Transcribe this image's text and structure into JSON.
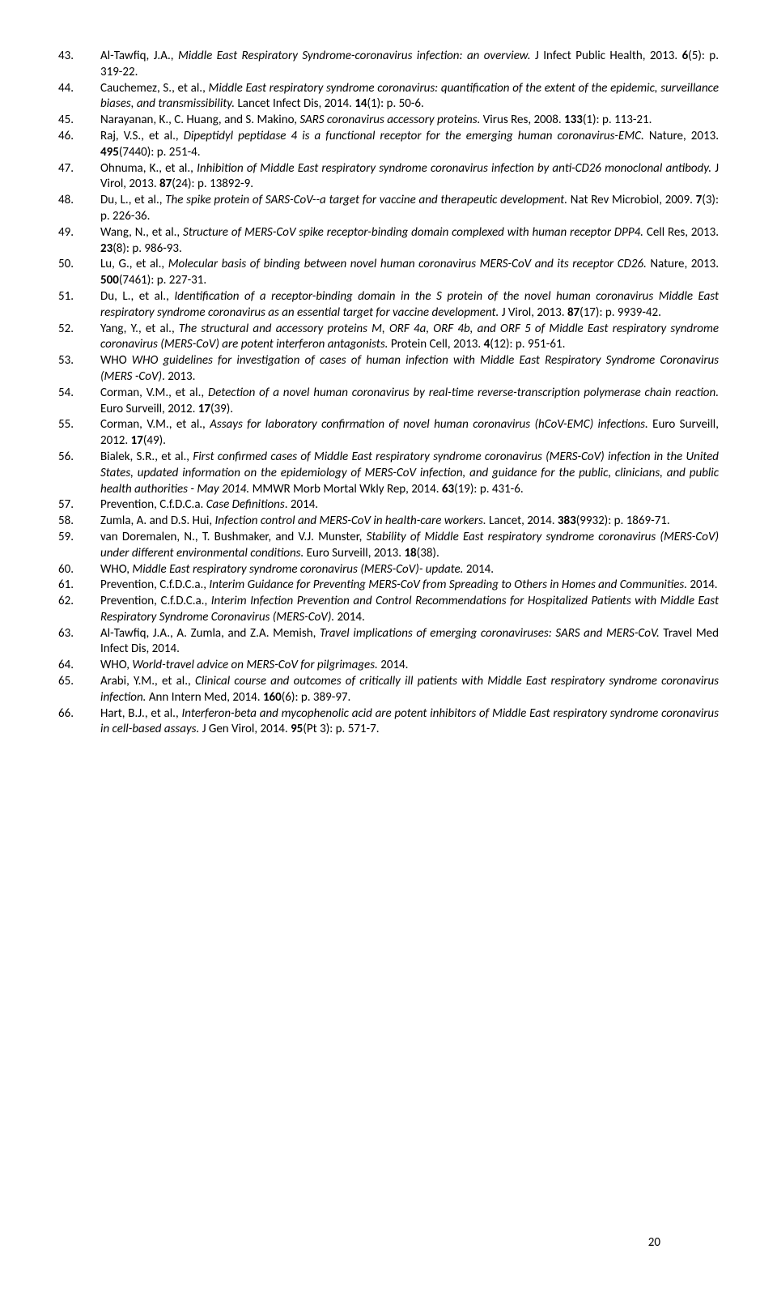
{
  "page_number": "20",
  "references": [
    {
      "n": "43.",
      "html": "Al-Tawfiq, J.A., <span class='italic'>Middle East Respiratory Syndrome-coronavirus infection: an overview.</span> J Infect Public Health, 2013. <span class='bold'>6</span>(5): p. 319-22."
    },
    {
      "n": "44.",
      "html": "Cauchemez, S., et al., <span class='italic'>Middle East respiratory syndrome coronavirus: quantification of the extent of the epidemic, surveillance biases, and transmissibility.</span> Lancet Infect Dis, 2014. <span class='bold'>14</span>(1): p. 50-6."
    },
    {
      "n": "45.",
      "html": "Narayanan, K., C. Huang, and S. Makino, <span class='italic'>SARS coronavirus accessory proteins.</span> Virus Res, 2008. <span class='bold'>133</span>(1): p. 113-21."
    },
    {
      "n": "46.",
      "html": "Raj, V.S., et al., <span class='italic'>Dipeptidyl peptidase 4 is a functional receptor for the emerging human coronavirus-EMC.</span> Nature, 2013. <span class='bold'>495</span>(7440): p. 251-4."
    },
    {
      "n": "47.",
      "html": "Ohnuma, K., et al., <span class='italic'>Inhibition of Middle East respiratory syndrome coronavirus infection by anti-CD26 monoclonal antibody.</span> J Virol, 2013. <span class='bold'>87</span>(24): p. 13892-9."
    },
    {
      "n": "48.",
      "html": "Du, L., et al., <span class='italic'>The spike protein of SARS-CoV--a target for vaccine and therapeutic development.</span> Nat Rev Microbiol, 2009. <span class='bold'>7</span>(3): p. 226-36."
    },
    {
      "n": "49.",
      "html": "Wang, N., et al., <span class='italic'>Structure of MERS-CoV spike receptor-binding domain complexed with human receptor DPP4.</span> Cell Res, 2013. <span class='bold'>23</span>(8): p. 986-93."
    },
    {
      "n": "50.",
      "html": "Lu, G., et al., <span class='italic'>Molecular basis of binding between novel human coronavirus MERS-CoV and its receptor CD26.</span> Nature, 2013. <span class='bold'>500</span>(7461): p. 227-31."
    },
    {
      "n": "51.",
      "html": "Du, L., et al., <span class='italic'>Identification of a receptor-binding domain in the S protein of the novel human coronavirus Middle East respiratory syndrome coronavirus as an essential target for vaccine development.</span> J Virol, 2013. <span class='bold'>87</span>(17): p. 9939-42."
    },
    {
      "n": "52.",
      "html": "Yang, Y., et al., <span class='italic'>The structural and accessory proteins M, ORF 4a, ORF 4b, and ORF 5 of Middle East respiratory syndrome coronavirus (MERS-CoV) are potent interferon antagonists.</span> Protein Cell, 2013. <span class='bold'>4</span>(12): p. 951-61."
    },
    {
      "n": "53.",
      "html": "WHO <span class='italic'>WHO guidelines for investigation of cases of human infection with Middle East Respiratory Syndrome Coronavirus (MERS -CoV)</span>. 2013."
    },
    {
      "n": "54.",
      "html": "Corman, V.M., et al., <span class='italic'>Detection of a novel human coronavirus by real-time reverse-transcription polymerase chain reaction.</span> Euro Surveill, 2012. <span class='bold'>17</span>(39)."
    },
    {
      "n": "55.",
      "html": "Corman, V.M., et al., <span class='italic'>Assays for laboratory confirmation of novel human coronavirus (hCoV-EMC) infections.</span> Euro Surveill, 2012. <span class='bold'>17</span>(49)."
    },
    {
      "n": "56.",
      "html": "Bialek, S.R., et al., <span class='italic'>First confirmed cases of Middle East respiratory syndrome coronavirus (MERS-CoV) infection in the United States, updated information on the epidemiology of MERS-CoV infection, and guidance for the public, clinicians, and public health authorities - May 2014.</span> MMWR Morb Mortal Wkly Rep, 2014. <span class='bold'>63</span>(19): p. 431-6."
    },
    {
      "n": "57.",
      "html": "Prevention, C.f.D.C.a. <span class='italic'>Case Definitions</span>. 2014."
    },
    {
      "n": "58.",
      "html": "Zumla, A. and D.S. Hui, <span class='italic'>Infection control and MERS-CoV in health-care workers.</span> Lancet, 2014. <span class='bold'>383</span>(9932): p. 1869-71."
    },
    {
      "n": "59.",
      "html": "van Doremalen, N., T. Bushmaker, and V.J. Munster, <span class='italic'>Stability of Middle East respiratory syndrome coronavirus (MERS-CoV) under different environmental conditions.</span> Euro Surveill, 2013. <span class='bold'>18</span>(38)."
    },
    {
      "n": "60.",
      "html": "WHO, <span class='italic'>Middle East respiratory syndrome coronavirus (MERS-CoV)- update.</span> 2014."
    },
    {
      "n": "61.",
      "html": "Prevention, C.f.D.C.a., <span class='italic'>Interim Guidance for Preventing MERS-CoV from Spreading to Others in Homes and Communities.</span> 2014."
    },
    {
      "n": "62.",
      "html": "Prevention, C.f.D.C.a., <span class='italic'>Interim Infection Prevention and Control Recommendations for Hospitalized Patients with Middle East Respiratory Syndrome Coronavirus (MERS-CoV).</span> 2014."
    },
    {
      "n": "63.",
      "html": "Al-Tawfiq, J.A., A. Zumla, and Z.A. Memish, <span class='italic'>Travel implications of emerging coronaviruses: SARS and MERS-CoV.</span> Travel Med Infect Dis, 2014."
    },
    {
      "n": "64.",
      "html": "WHO, <span class='italic'>World-travel advice on MERS-CoV for pilgrimages.</span> 2014."
    },
    {
      "n": "65.",
      "html": "Arabi, Y.M., et al., <span class='italic'>Clinical course and outcomes of critically ill patients with Middle East respiratory syndrome coronavirus infection.</span> Ann Intern Med, 2014. <span class='bold'>160</span>(6): p. 389-97."
    },
    {
      "n": "66.",
      "html": "Hart, B.J., et al., <span class='italic'>Interferon-beta and mycophenolic acid are potent inhibitors of Middle East respiratory syndrome coronavirus in cell-based assays.</span> J Gen Virol, 2014. <span class='bold'>95</span>(Pt 3): p. 571-7."
    }
  ]
}
